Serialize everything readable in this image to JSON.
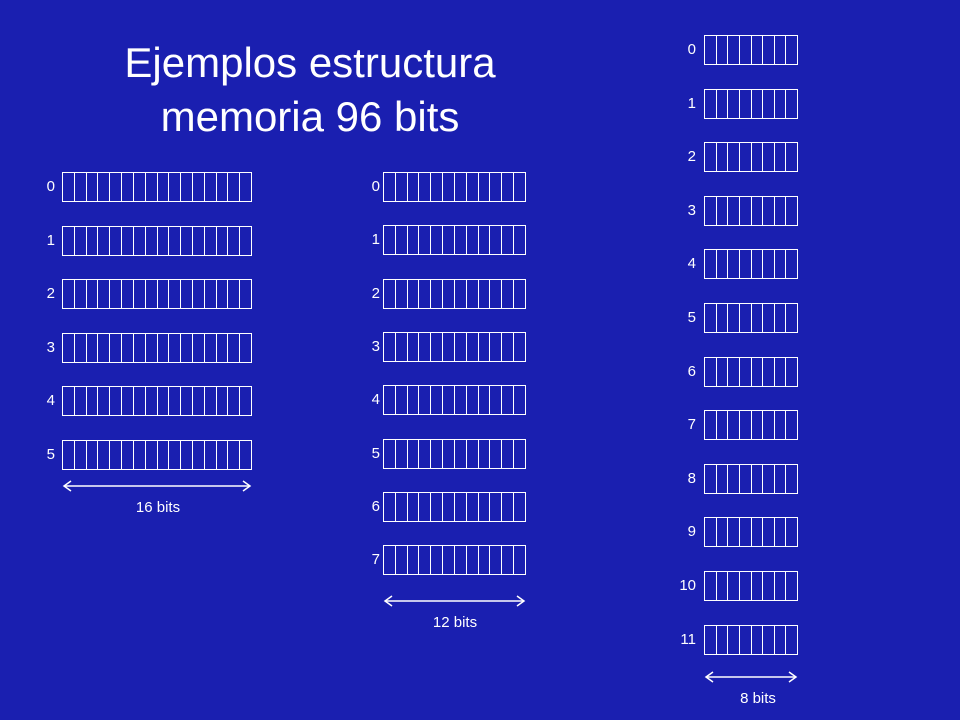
{
  "slide": {
    "title_line1": "Ejemplos estructura",
    "title_line2": "memoria 96 bits"
  },
  "colors": {
    "background": "#1a1fb0",
    "foreground": "#ffffff"
  },
  "memories": [
    {
      "name": "memoria-16-bits",
      "word_width_bits": 16,
      "addresses": [
        "0",
        "1",
        "2",
        "3",
        "4",
        "5"
      ],
      "width_label": "16 bits"
    },
    {
      "name": "memoria-12-bits",
      "word_width_bits": 12,
      "addresses": [
        "0",
        "1",
        "2",
        "3",
        "4",
        "5",
        "6",
        "7"
      ],
      "width_label": "12 bits"
    },
    {
      "name": "memoria-8-bits",
      "word_width_bits": 8,
      "addresses": [
        "0",
        "1",
        "2",
        "3",
        "4",
        "5",
        "6",
        "7",
        "8",
        "9",
        "10",
        "11"
      ],
      "width_label": "8 bits"
    }
  ]
}
